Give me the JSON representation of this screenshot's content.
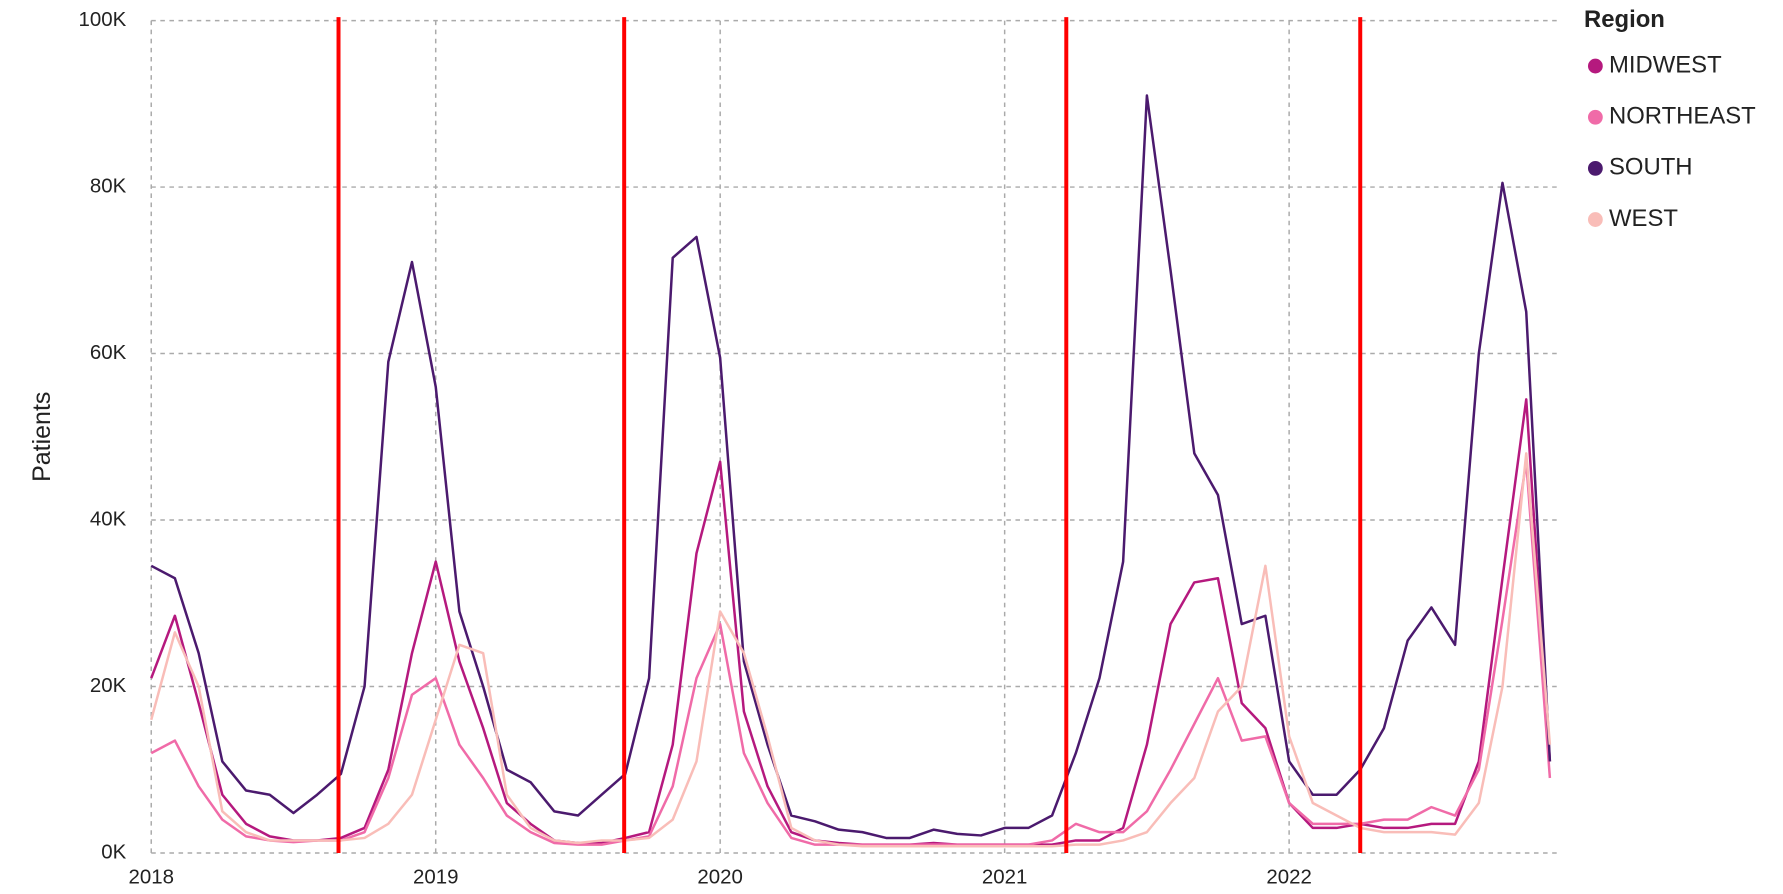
{
  "chart_data": {
    "type": "line",
    "ylabel": "Patients",
    "legend_title": "Region",
    "legend": "right",
    "grid": true,
    "categories": [
      "2018",
      null,
      null,
      null,
      null,
      null,
      null,
      null,
      null,
      null,
      null,
      null,
      "2019",
      null,
      null,
      null,
      null,
      null,
      null,
      null,
      null,
      null,
      null,
      null,
      "2020",
      null,
      null,
      null,
      null,
      null,
      null,
      null,
      null,
      null,
      null,
      null,
      "2021",
      null,
      null,
      null,
      null,
      null,
      null,
      null,
      null,
      null,
      null,
      null,
      "2022",
      null,
      null,
      null,
      null,
      null,
      null,
      null,
      null,
      null,
      null,
      null
    ],
    "ylim": [
      0,
      100000
    ],
    "yticks": [
      {
        "value": 0,
        "label": "0K"
      },
      {
        "value": 20000,
        "label": "20K"
      },
      {
        "value": 40000,
        "label": "40K"
      },
      {
        "value": 60000,
        "label": "60K"
      },
      {
        "value": 80000,
        "label": "80K"
      },
      {
        "value": 100000,
        "label": "100K"
      }
    ],
    "vlines": [
      7.9,
      19.95,
      38.6,
      51
    ],
    "vline_color": "#ff0000",
    "series": [
      {
        "name": "MIDWEST",
        "color": "#b5197e",
        "values": [
          21000,
          28500,
          18000,
          7000,
          3500,
          2000,
          1500,
          1500,
          1800,
          3000,
          10000,
          24000,
          35000,
          23000,
          15000,
          6000,
          3500,
          1500,
          1200,
          1200,
          1800,
          2500,
          13000,
          36000,
          47000,
          17000,
          8000,
          2500,
          1500,
          1200,
          1000,
          1000,
          1000,
          1200,
          1000,
          1000,
          1000,
          1000,
          1000,
          1500,
          1500,
          3000,
          13000,
          27500,
          32500,
          33000,
          18000,
          15000,
          6000,
          3000,
          3000,
          3500,
          3000,
          3000,
          3500,
          3500,
          11000,
          33000,
          54500,
          11000
        ]
      },
      {
        "name": "NORTHEAST",
        "color": "#f06ba8",
        "values": [
          12000,
          13500,
          8000,
          4000,
          2000,
          1500,
          1300,
          1500,
          1500,
          2500,
          9000,
          19000,
          21000,
          13000,
          9000,
          4500,
          2500,
          1200,
          1000,
          1000,
          1500,
          2000,
          8000,
          21000,
          27500,
          12000,
          6000,
          1800,
          1000,
          1000,
          1000,
          1000,
          1000,
          1000,
          1000,
          1000,
          1000,
          1000,
          1500,
          3500,
          2500,
          2500,
          5000,
          10000,
          15500,
          21000,
          13500,
          14000,
          6000,
          3500,
          3500,
          3500,
          4000,
          4000,
          5500,
          4500,
          10000,
          28000,
          47000,
          9000
        ]
      },
      {
        "name": "SOUTH",
        "color": "#4b1a6e",
        "values": [
          34500,
          33000,
          24000,
          11000,
          7500,
          7000,
          4800,
          7000,
          9500,
          20000,
          59000,
          71000,
          56000,
          29000,
          20000,
          10000,
          8500,
          5000,
          4500,
          7000,
          9500,
          21000,
          71500,
          74000,
          59500,
          23000,
          13000,
          4500,
          3800,
          2800,
          2500,
          1800,
          1800,
          2800,
          2300,
          2100,
          3000,
          3000,
          4500,
          12000,
          21000,
          35000,
          91000,
          70000,
          48000,
          43000,
          27500,
          28500,
          11000,
          7000,
          7000,
          10000,
          15000,
          25500,
          29500,
          25000,
          60000,
          80500,
          65000,
          11000
        ]
      },
      {
        "name": "WEST",
        "color": "#f9bdb8",
        "values": [
          16000,
          26500,
          20000,
          5000,
          2500,
          1500,
          1500,
          1500,
          1500,
          1800,
          3500,
          7000,
          16000,
          25000,
          24000,
          7000,
          3000,
          1500,
          1200,
          1500,
          1500,
          1800,
          4000,
          11000,
          29000,
          24000,
          14000,
          3000,
          1500,
          1000,
          800,
          800,
          800,
          800,
          800,
          800,
          800,
          800,
          800,
          1000,
          1000,
          1500,
          2500,
          6000,
          9000,
          17000,
          20000,
          34500,
          14000,
          6000,
          4500,
          3000,
          2500,
          2500,
          2500,
          2200,
          6000,
          20000,
          48000,
          13000
        ]
      }
    ]
  }
}
